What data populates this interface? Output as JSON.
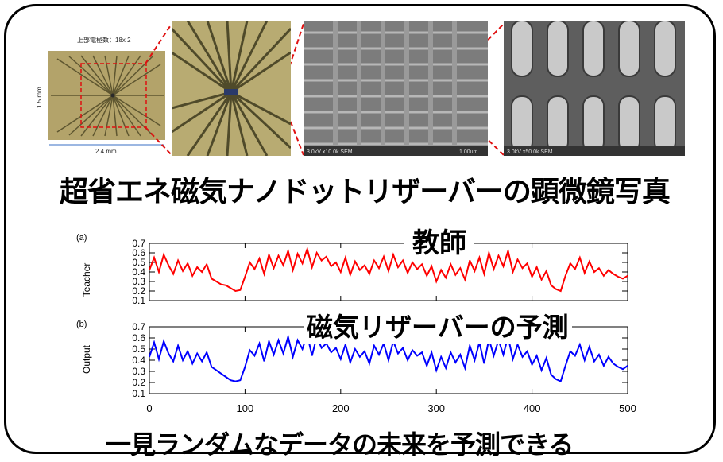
{
  "photos": {
    "chip_header": "上部電極数：18x 2",
    "chip_height": "1.5 mm",
    "chip_width": "2.4 mm",
    "sem1_scale": "1.00um",
    "sem1_info": "3.0kV x10.0k SEM",
    "sem2_info": "3.0kV x50.0k SEM"
  },
  "captions": {
    "top": "超省エネ磁気ナノドットリザーバーの顕微鏡写真",
    "teacher": "教師",
    "prediction": "磁気リザーバーの予測",
    "bottom": "一見ランダムなデータの未来を予測できる"
  },
  "chart_data": [
    {
      "type": "line",
      "panel": "(a)",
      "ylabel": "Teacher",
      "ylim": [
        0.1,
        0.7
      ],
      "yticks": [
        "0.7",
        "0.6",
        "0.5",
        "0.4",
        "0.3",
        "0.2",
        "0.1"
      ],
      "xlim": [
        0,
        500
      ],
      "color": "#ff0000",
      "series": [
        {
          "x_step": 5,
          "values": [
            0.42,
            0.55,
            0.4,
            0.58,
            0.47,
            0.38,
            0.52,
            0.41,
            0.49,
            0.36,
            0.45,
            0.4,
            0.48,
            0.33,
            0.3,
            0.27,
            0.26,
            0.23,
            0.2,
            0.21,
            0.35,
            0.5,
            0.43,
            0.54,
            0.38,
            0.58,
            0.44,
            0.57,
            0.47,
            0.62,
            0.42,
            0.59,
            0.49,
            0.64,
            0.45,
            0.6,
            0.52,
            0.56,
            0.46,
            0.5,
            0.4,
            0.55,
            0.37,
            0.51,
            0.42,
            0.47,
            0.38,
            0.52,
            0.44,
            0.56,
            0.41,
            0.58,
            0.45,
            0.52,
            0.39,
            0.5,
            0.43,
            0.48,
            0.36,
            0.46,
            0.3,
            0.42,
            0.34,
            0.48,
            0.37,
            0.44,
            0.32,
            0.52,
            0.41,
            0.55,
            0.38,
            0.6,
            0.43,
            0.57,
            0.46,
            0.62,
            0.4,
            0.53,
            0.44,
            0.49,
            0.35,
            0.45,
            0.32,
            0.41,
            0.26,
            0.22,
            0.2,
            0.36,
            0.49,
            0.43,
            0.55,
            0.39,
            0.51,
            0.4,
            0.44,
            0.36,
            0.42,
            0.38,
            0.35,
            0.33,
            0.36
          ]
        }
      ]
    },
    {
      "type": "line",
      "panel": "(b)",
      "ylabel": "Output",
      "ylim": [
        0.1,
        0.7
      ],
      "yticks": [
        "0.7",
        "0.6",
        "0.5",
        "0.4",
        "0.3",
        "0.2",
        "0.1"
      ],
      "xlim": [
        0,
        500
      ],
      "xticks": [
        "0",
        "100",
        "200",
        "300",
        "400",
        "500"
      ],
      "color": "#0000ff",
      "series": [
        {
          "x_step": 5,
          "values": [
            0.43,
            0.56,
            0.41,
            0.57,
            0.46,
            0.39,
            0.53,
            0.4,
            0.48,
            0.37,
            0.46,
            0.39,
            0.47,
            0.34,
            0.31,
            0.28,
            0.25,
            0.22,
            0.21,
            0.22,
            0.34,
            0.49,
            0.44,
            0.55,
            0.39,
            0.57,
            0.45,
            0.58,
            0.46,
            0.61,
            0.43,
            0.58,
            0.5,
            0.63,
            0.44,
            0.61,
            0.51,
            0.55,
            0.47,
            0.51,
            0.41,
            0.54,
            0.38,
            0.5,
            0.43,
            0.48,
            0.37,
            0.53,
            0.45,
            0.55,
            0.4,
            0.57,
            0.46,
            0.51,
            0.4,
            0.49,
            0.44,
            0.47,
            0.35,
            0.47,
            0.31,
            0.43,
            0.33,
            0.47,
            0.38,
            0.45,
            0.33,
            0.53,
            0.4,
            0.56,
            0.37,
            0.59,
            0.44,
            0.58,
            0.45,
            0.61,
            0.41,
            0.54,
            0.43,
            0.48,
            0.36,
            0.44,
            0.31,
            0.42,
            0.27,
            0.23,
            0.21,
            0.35,
            0.48,
            0.44,
            0.54,
            0.4,
            0.52,
            0.39,
            0.45,
            0.35,
            0.43,
            0.37,
            0.34,
            0.32,
            0.35
          ]
        }
      ]
    }
  ]
}
